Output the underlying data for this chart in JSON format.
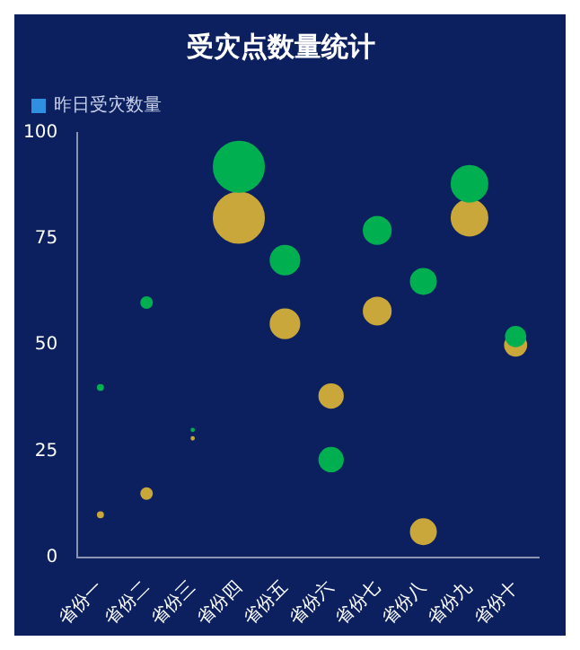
{
  "chart_data": {
    "type": "bubble",
    "title": "受灾点数量统计",
    "categories": [
      "省份一",
      "省份二",
      "省份三",
      "省份四",
      "省份五",
      "省份六",
      "省份七",
      "省份八",
      "省份九",
      "省份十"
    ],
    "series": [
      {
        "name": "昨日受灾数量",
        "color": "#2f8fe0",
        "values": [
          null,
          null,
          null,
          null,
          null,
          null,
          null,
          null,
          null,
          null
        ]
      },
      {
        "color": "#00b050",
        "values": [
          40,
          60,
          30,
          92,
          70,
          23,
          77,
          65,
          88,
          52
        ],
        "sizes": [
          0.011,
          0.046,
          0.0025,
          1,
          0.33,
          0.22,
          0.29,
          0.25,
          0.51,
          0.15
        ]
      },
      {
        "color": "#c9a73a",
        "values": [
          10,
          15,
          28,
          80,
          55,
          38,
          58,
          6,
          80,
          50
        ],
        "sizes": [
          0.011,
          0.046,
          0.0025,
          1,
          0.33,
          0.22,
          0.29,
          0.25,
          0.51,
          0.18
        ]
      }
    ],
    "ylim": [
      0,
      100
    ],
    "yticks": [
      0,
      25,
      50,
      75,
      100
    ],
    "grid": false,
    "legend": "top left"
  }
}
